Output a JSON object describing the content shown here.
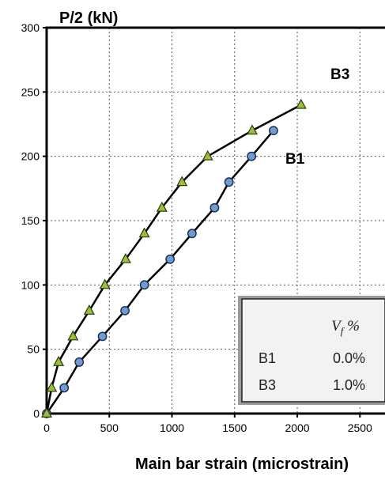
{
  "chart_data": {
    "type": "line",
    "title": "",
    "ylabel": "P/2  (kN)",
    "xlabel": "Main bar strain  (microstrain)",
    "xlim": [
      0,
      2700
    ],
    "ylim": [
      0,
      300
    ],
    "x_ticks": [
      "0",
      "500",
      "1000",
      "1500",
      "2000",
      "2500"
    ],
    "y_ticks": [
      "0",
      "50",
      "100",
      "150",
      "200",
      "250",
      "300"
    ],
    "grid": true,
    "series": [
      {
        "name": "B1",
        "marker": "circle",
        "marker_color": "#6f9bd0",
        "points": [
          {
            "x": 0,
            "y": 0
          },
          {
            "x": 140,
            "y": 20
          },
          {
            "x": 260,
            "y": 40
          },
          {
            "x": 445,
            "y": 60
          },
          {
            "x": 625,
            "y": 80
          },
          {
            "x": 780,
            "y": 100
          },
          {
            "x": 985,
            "y": 120
          },
          {
            "x": 1160,
            "y": 140
          },
          {
            "x": 1340,
            "y": 160
          },
          {
            "x": 1455,
            "y": 180
          },
          {
            "x": 1635,
            "y": 200
          },
          {
            "x": 1810,
            "y": 220
          }
        ]
      },
      {
        "name": "B3",
        "marker": "triangle",
        "marker_color": "#9bbf3a",
        "points": [
          {
            "x": 0,
            "y": 0
          },
          {
            "x": 40,
            "y": 20
          },
          {
            "x": 95,
            "y": 40
          },
          {
            "x": 210,
            "y": 60
          },
          {
            "x": 340,
            "y": 80
          },
          {
            "x": 465,
            "y": 100
          },
          {
            "x": 630,
            "y": 120
          },
          {
            "x": 780,
            "y": 140
          },
          {
            "x": 920,
            "y": 160
          },
          {
            "x": 1080,
            "y": 180
          },
          {
            "x": 1285,
            "y": 200
          },
          {
            "x": 1640,
            "y": 220
          },
          {
            "x": 2030,
            "y": 240
          }
        ]
      }
    ],
    "legend": {
      "placement": "bottom-right",
      "header_main": "V",
      "header_sub": "f",
      "header_unit": " %",
      "rows": [
        {
          "name": "B1",
          "value": "0.0%"
        },
        {
          "name": "B3",
          "value": "1.0%"
        }
      ]
    }
  }
}
